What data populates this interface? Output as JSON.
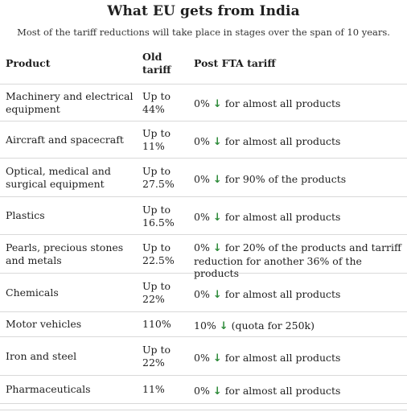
{
  "header": {
    "title": "What EU gets from India",
    "subtitle": "Most of the tariff reductions will take place in stages over the span of 10 years."
  },
  "table": {
    "columns": {
      "product": "Product",
      "old_line1": "Old",
      "old_line2": "tariff",
      "post": "Post FTA tariff"
    },
    "arrow_icon": "down-arrow-icon",
    "arrow_glyph": "↓",
    "arrow_color": "#2e8b3a",
    "rows": [
      {
        "product": "Machinery and electrical equipment",
        "old_line1": "Up to",
        "old_line2": "44%",
        "post_rate": "0%",
        "post_note": "for almost all products"
      },
      {
        "product": "Aircraft and spacecraft",
        "old_line1": "Up to",
        "old_line2": "11%",
        "post_rate": "0%",
        "post_note": "for almost all products"
      },
      {
        "product": "Optical, medical and surgical equipment",
        "old_line1": "Up to",
        "old_line2": "27.5%",
        "post_rate": "0%",
        "post_note": "for 90% of the products"
      },
      {
        "product": "Plastics",
        "old_line1": "Up to",
        "old_line2": "16.5%",
        "post_rate": "0%",
        "post_note": "for almost all products"
      },
      {
        "product": "Pearls, precious stones and metals",
        "old_line1": "Up to",
        "old_line2": "22.5%",
        "post_rate": "0%",
        "post_note": "for 20% of the products and tarriff reduction for another 36% of the products"
      },
      {
        "product": "Chemicals",
        "old_line1": "Up to",
        "old_line2": "22%",
        "post_rate": "0%",
        "post_note": "for almost all products"
      },
      {
        "product": "Motor vehicles",
        "old_line1": "110%",
        "old_line2": "",
        "post_rate": "10%",
        "post_note": "(quota for 250k)"
      },
      {
        "product": "Iron and steel",
        "old_line1": "Up to",
        "old_line2": "22%",
        "post_rate": "0%",
        "post_note": "for almost all products"
      },
      {
        "product": "Pharmaceuticals",
        "old_line1": "11%",
        "old_line2": "",
        "post_rate": "0%",
        "post_note": "for almost all products"
      }
    ]
  }
}
